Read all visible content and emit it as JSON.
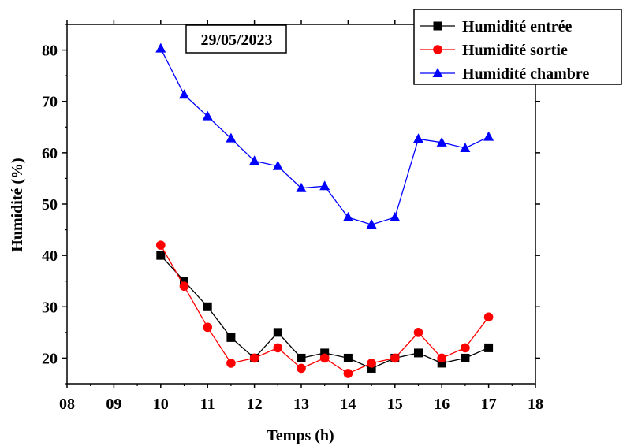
{
  "chart_data": {
    "type": "line",
    "title": "",
    "annotation": "29/05/2023",
    "xlabel": "Temps (h)",
    "ylabel": "Humidité (%)",
    "xlim": [
      8,
      18
    ],
    "ylim": [
      15,
      85
    ],
    "x_tick_labels": [
      "08",
      "09",
      "10",
      "11",
      "12",
      "13",
      "14",
      "15",
      "16",
      "17",
      "18"
    ],
    "y_ticks": [
      20,
      30,
      40,
      50,
      60,
      70,
      80
    ],
    "grid": false,
    "legend_position": "top-right",
    "x": [
      10,
      10.5,
      11,
      11.5,
      12,
      12.5,
      13,
      13.5,
      14,
      14.5,
      15,
      15.5,
      16,
      16.5,
      17
    ],
    "series": [
      {
        "name": "Humidité entrée",
        "color": "#000000",
        "marker": "square",
        "values": [
          40,
          35,
          30,
          24,
          20,
          25,
          20,
          21,
          20,
          18,
          20,
          21,
          19,
          20,
          22
        ]
      },
      {
        "name": "Humidité sortie",
        "color": "#ff0000",
        "marker": "circle",
        "values": [
          42,
          34,
          26,
          19,
          20,
          22,
          18,
          20,
          17,
          19,
          20,
          25,
          20,
          22,
          28
        ]
      },
      {
        "name": "Humidité chambre",
        "color": "#0000ff",
        "marker": "triangle",
        "values": [
          80.3,
          71.3,
          67.1,
          62.8,
          58.4,
          57.4,
          53.1,
          53.5,
          47.4,
          46,
          47.4,
          62.7,
          62,
          60.9,
          63.1
        ]
      }
    ]
  }
}
